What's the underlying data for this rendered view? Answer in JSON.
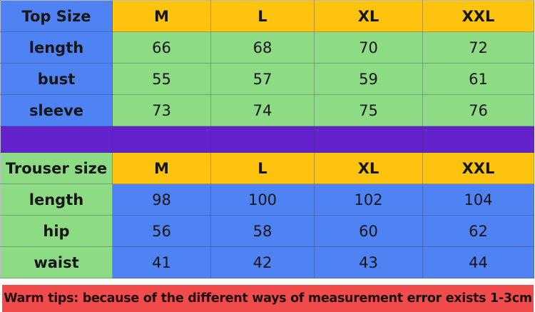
{
  "colors": {
    "blue": "#4f82f2",
    "green": "#8ddb84",
    "yellow": "#fec30f",
    "purple": "#6322cc",
    "red": "#f14b4b"
  },
  "top": {
    "header": [
      "Top Size",
      "M",
      "L",
      "XL",
      "XXL"
    ],
    "rows": [
      {
        "label": "length",
        "values": [
          "66",
          "68",
          "70",
          "72"
        ]
      },
      {
        "label": "bust",
        "values": [
          "55",
          "57",
          "59",
          "61"
        ]
      },
      {
        "label": "sleeve",
        "values": [
          "73",
          "74",
          "75",
          "76"
        ]
      }
    ]
  },
  "trouser": {
    "header": [
      "Trouser size",
      "M",
      "L",
      "XL",
      "XXL"
    ],
    "rows": [
      {
        "label": "length",
        "values": [
          "98",
          "100",
          "102",
          "104"
        ]
      },
      {
        "label": "hip",
        "values": [
          "56",
          "58",
          "60",
          "62"
        ]
      },
      {
        "label": "waist",
        "values": [
          "41",
          "42",
          "43",
          "44"
        ]
      }
    ]
  },
  "tip": "Warm tips: because of the different ways of measurement error exists 1-3cm"
}
